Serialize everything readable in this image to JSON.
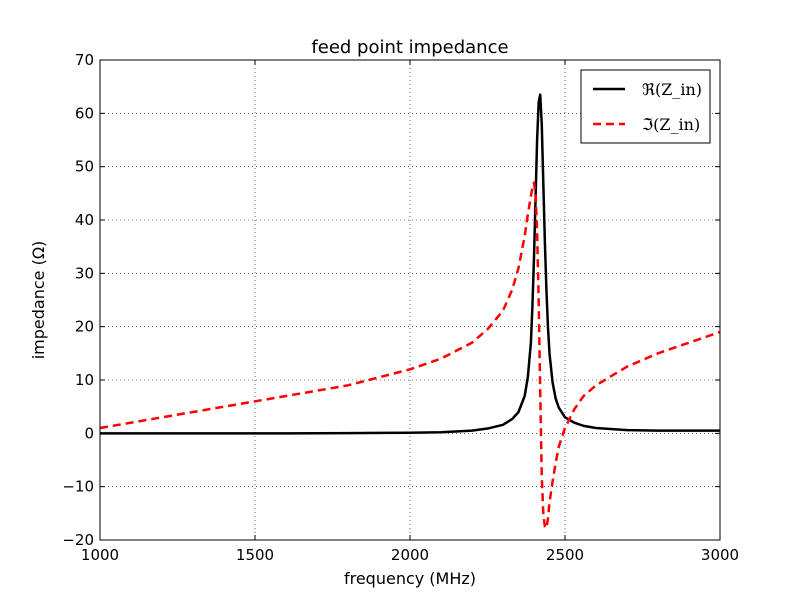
{
  "chart_data": {
    "type": "line",
    "title": "feed point impedance",
    "xlabel": "frequency (MHz)",
    "ylabel": "impedance (Ω)",
    "xlim": [
      1000,
      3000
    ],
    "ylim": [
      -20,
      70
    ],
    "xticks": [
      1000,
      1500,
      2000,
      2500,
      3000
    ],
    "xtick_labels": [
      "1000",
      "1500",
      "2000",
      "2500",
      "3000"
    ],
    "yticks": [
      -20,
      -10,
      0,
      10,
      20,
      30,
      40,
      50,
      60,
      70
    ],
    "ytick_labels": [
      "−20",
      "−10",
      "0",
      "10",
      "20",
      "30",
      "40",
      "50",
      "60",
      "70"
    ],
    "grid": true,
    "legend_position": "top-right",
    "series": [
      {
        "name": "ℜ(Z_in)",
        "color": "#000000",
        "style": "solid",
        "x": [
          1000,
          1200,
          1400,
          1600,
          1800,
          2000,
          2100,
          2200,
          2250,
          2300,
          2330,
          2350,
          2370,
          2380,
          2390,
          2395,
          2400,
          2405,
          2410,
          2415,
          2420,
          2425,
          2430,
          2435,
          2440,
          2445,
          2450,
          2460,
          2470,
          2480,
          2500,
          2530,
          2560,
          2600,
          2700,
          2800,
          2900,
          3000
        ],
        "y": [
          0.0,
          0.0,
          0.0,
          0.0,
          0.05,
          0.1,
          0.2,
          0.5,
          0.9,
          1.6,
          2.7,
          4.0,
          7.0,
          10.5,
          17.0,
          24.0,
          33.0,
          44.0,
          55.0,
          62.0,
          63.5,
          58.0,
          47.0,
          36.0,
          27.0,
          20.0,
          15.0,
          9.5,
          6.5,
          4.8,
          3.0,
          2.0,
          1.4,
          1.0,
          0.6,
          0.5,
          0.5,
          0.5
        ]
      },
      {
        "name": "ℑ(Z_in)",
        "color": "#ff0000",
        "style": "dashed",
        "x": [
          1000,
          1200,
          1400,
          1600,
          1800,
          1900,
          2000,
          2100,
          2200,
          2250,
          2300,
          2330,
          2350,
          2370,
          2380,
          2390,
          2395,
          2400,
          2405,
          2410,
          2415,
          2420,
          2425,
          2430,
          2435,
          2440,
          2445,
          2450,
          2460,
          2470,
          2480,
          2500,
          2530,
          2560,
          2600,
          2700,
          2800,
          2900,
          3000
        ],
        "y": [
          1.0,
          3.0,
          5.0,
          7.0,
          9.0,
          10.5,
          12.0,
          14.0,
          17.0,
          19.5,
          23.0,
          27.0,
          31.0,
          37.0,
          41.0,
          44.5,
          46.0,
          47.0,
          45.0,
          38.0,
          25.0,
          8.0,
          -8.0,
          -15.0,
          -17.5,
          -17.8,
          -16.0,
          -13.0,
          -9.0,
          -5.5,
          -2.5,
          1.0,
          4.5,
          7.0,
          9.0,
          12.5,
          15.0,
          17.0,
          19.0
        ]
      }
    ]
  }
}
